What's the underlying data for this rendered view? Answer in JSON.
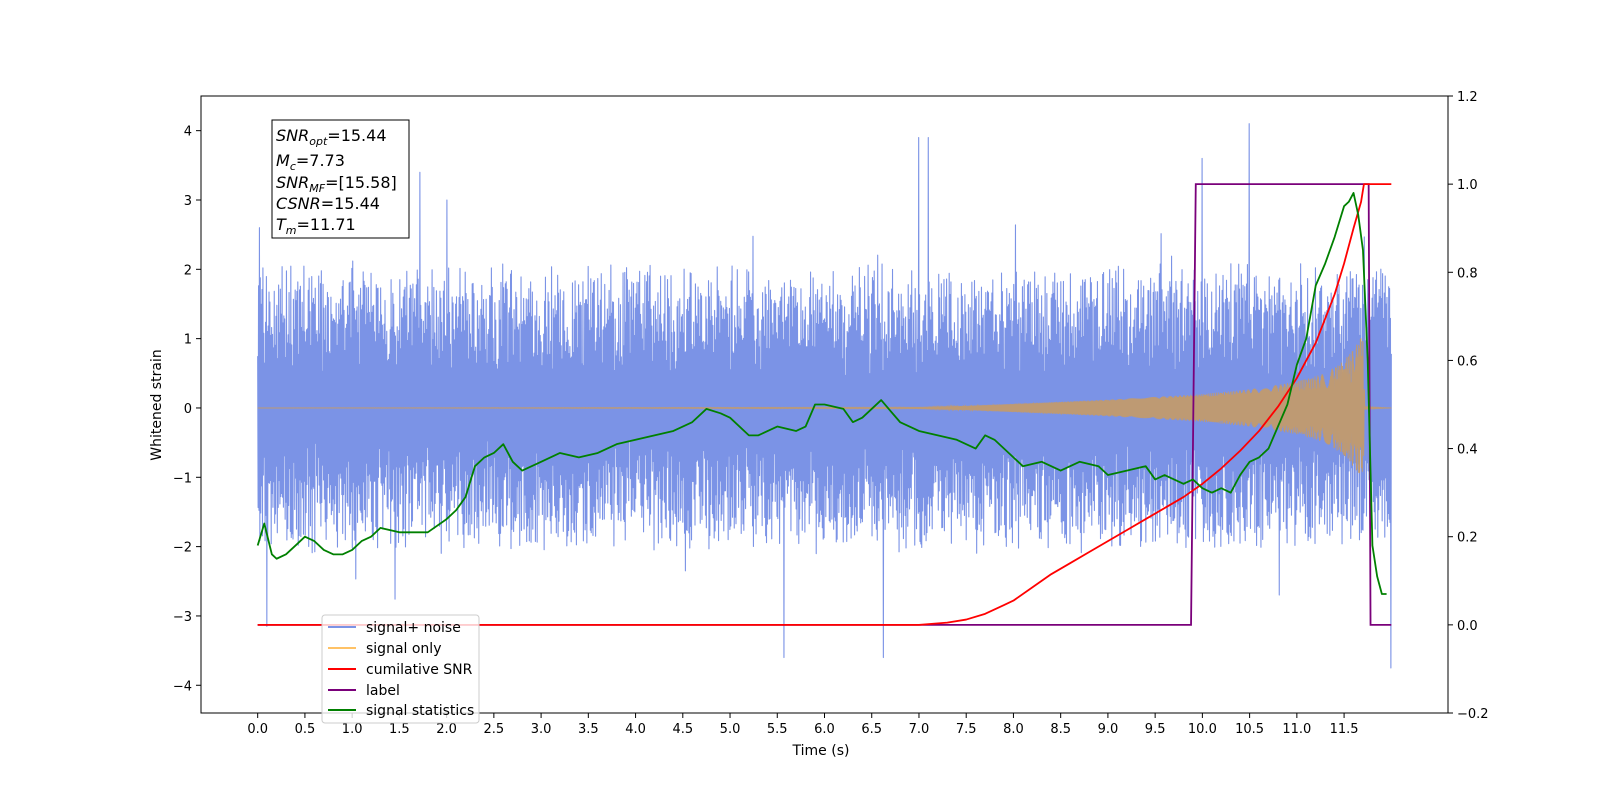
{
  "chart_data": {
    "type": "line",
    "title": "",
    "xlabel": "Time (s)",
    "ylabel": "Whitened strain",
    "xlim": [
      -0.6,
      12.6
    ],
    "ylim": [
      -4.4,
      4.5
    ],
    "ylim_right": [
      -0.2,
      1.2
    ],
    "grid": false,
    "x_ticks": [
      "0.0",
      "0.5",
      "1.0",
      "1.5",
      "2.0",
      "2.5",
      "3.0",
      "3.5",
      "4.0",
      "4.5",
      "5.0",
      "5.5",
      "6.0",
      "6.5",
      "7.0",
      "7.5",
      "8.0",
      "8.5",
      "9.0",
      "9.5",
      "10.0",
      "10.5",
      "11.0",
      "11.5"
    ],
    "y_ticks": [
      "4",
      "3",
      "2",
      "1",
      "0",
      "−1",
      "−2",
      "−3",
      "−4"
    ],
    "y_ticks_right": [
      "1.2",
      "1.0",
      "0.8",
      "0.6",
      "0.4",
      "0.2",
      "0.0",
      "−0.2"
    ],
    "colors": {
      "noise": "#7b93e6",
      "signal": "#c29a6d",
      "signal_legend": "#ffc266",
      "snr": "#ff0000",
      "label": "#7a007a",
      "stats": "#008000"
    },
    "annotation": {
      "snr_opt": {
        "base": "SNR",
        "sub": "opt",
        "val": "=15.44"
      },
      "mc": {
        "base": "M",
        "sub": "c",
        "val": "=7.73"
      },
      "snr_mf": {
        "base": "SNR",
        "sub": "MF",
        "val": "=[15.58]"
      },
      "csnr": {
        "base": "CSNR",
        "val": "=15.44"
      },
      "tm": {
        "base": "T",
        "sub": "m",
        "val": "=11.71"
      }
    },
    "legend": {
      "position": "lower-left",
      "entries": [
        "signal+ noise",
        "signal only",
        "cumilative SNR",
        "label",
        "signal statistics"
      ]
    },
    "series": [
      {
        "name": "signal+ noise",
        "axis": "left",
        "description_free": true,
        "x_range": [
          0.0,
          12.0
        ],
        "amplitude_band": [
          -2.3,
          2.3
        ],
        "peak_points": [
          [
            0.02,
            2.6
          ],
          [
            1.72,
            3.4
          ],
          [
            2.0,
            3.0
          ],
          [
            7.0,
            3.9
          ],
          [
            7.1,
            3.9
          ],
          [
            10.5,
            4.1
          ],
          [
            10.0,
            3.6
          ],
          [
            5.57,
            -3.6
          ],
          [
            6.62,
            -3.6
          ],
          [
            12.0,
            -3.75
          ],
          [
            0.1,
            -3.15
          ]
        ]
      },
      {
        "name": "signal only",
        "axis": "left",
        "envelope": {
          "x": [
            0.0,
            7.0,
            7.5,
            8.0,
            9.0,
            10.0,
            10.5,
            11.0,
            11.3,
            11.5,
            11.6,
            11.7,
            11.72,
            12.0
          ],
          "y": [
            0.0,
            0.01,
            0.03,
            0.06,
            0.12,
            0.2,
            0.27,
            0.38,
            0.5,
            0.68,
            0.85,
            1.05,
            0.02,
            0.0
          ]
        }
      },
      {
        "name": "cumilative SNR",
        "axis": "right",
        "x": [
          0.0,
          6.5,
          7.0,
          7.3,
          7.5,
          7.7,
          7.9,
          8.0,
          8.2,
          8.4,
          8.6,
          8.8,
          9.0,
          9.2,
          9.4,
          9.6,
          9.8,
          10.0,
          10.2,
          10.4,
          10.6,
          10.8,
          11.0,
          11.2,
          11.4,
          11.5,
          11.6,
          11.68,
          11.71,
          11.72,
          12.0
        ],
        "y": [
          0.0,
          0.0,
          0.0,
          0.005,
          0.012,
          0.025,
          0.045,
          0.055,
          0.085,
          0.115,
          0.14,
          0.165,
          0.19,
          0.215,
          0.24,
          0.265,
          0.29,
          0.32,
          0.355,
          0.395,
          0.44,
          0.495,
          0.56,
          0.64,
          0.75,
          0.82,
          0.9,
          0.96,
          1.0,
          1.0,
          1.0
        ]
      },
      {
        "name": "label",
        "axis": "right",
        "x": [
          0.0,
          9.88,
          9.93,
          11.76,
          11.78,
          12.0
        ],
        "y": [
          0.0,
          0.0,
          1.0,
          1.0,
          0.0,
          0.0
        ]
      },
      {
        "name": "signal statistics",
        "axis": "right",
        "x": [
          0.0,
          0.07,
          0.15,
          0.2,
          0.3,
          0.4,
          0.5,
          0.6,
          0.7,
          0.8,
          0.9,
          1.0,
          1.1,
          1.2,
          1.3,
          1.5,
          1.8,
          2.0,
          2.1,
          2.2,
          2.3,
          2.4,
          2.5,
          2.6,
          2.7,
          2.8,
          3.0,
          3.2,
          3.4,
          3.6,
          3.8,
          4.0,
          4.2,
          4.4,
          4.6,
          4.75,
          4.9,
          5.0,
          5.2,
          5.3,
          5.5,
          5.7,
          5.8,
          5.9,
          6.0,
          6.2,
          6.3,
          6.4,
          6.6,
          6.8,
          7.0,
          7.2,
          7.4,
          7.6,
          7.7,
          7.8,
          8.0,
          8.1,
          8.3,
          8.5,
          8.7,
          8.9,
          9.0,
          9.2,
          9.4,
          9.5,
          9.6,
          9.8,
          9.9,
          10.0,
          10.1,
          10.2,
          10.3,
          10.4,
          10.5,
          10.6,
          10.7,
          10.8,
          10.9,
          11.0,
          11.1,
          11.2,
          11.3,
          11.4,
          11.5,
          11.55,
          11.6,
          11.65,
          11.7,
          11.75,
          11.8,
          11.85,
          11.9,
          11.95
        ],
        "y": [
          0.18,
          0.23,
          0.16,
          0.15,
          0.16,
          0.18,
          0.2,
          0.19,
          0.17,
          0.16,
          0.16,
          0.17,
          0.19,
          0.2,
          0.22,
          0.21,
          0.21,
          0.24,
          0.26,
          0.29,
          0.36,
          0.38,
          0.39,
          0.41,
          0.37,
          0.35,
          0.37,
          0.39,
          0.38,
          0.39,
          0.41,
          0.42,
          0.43,
          0.44,
          0.46,
          0.49,
          0.48,
          0.47,
          0.43,
          0.43,
          0.45,
          0.44,
          0.45,
          0.5,
          0.5,
          0.49,
          0.46,
          0.47,
          0.51,
          0.46,
          0.44,
          0.43,
          0.42,
          0.4,
          0.43,
          0.42,
          0.38,
          0.36,
          0.37,
          0.35,
          0.37,
          0.36,
          0.34,
          0.35,
          0.36,
          0.33,
          0.34,
          0.32,
          0.33,
          0.31,
          0.3,
          0.31,
          0.3,
          0.34,
          0.37,
          0.38,
          0.4,
          0.45,
          0.5,
          0.59,
          0.65,
          0.77,
          0.82,
          0.88,
          0.95,
          0.96,
          0.98,
          0.93,
          0.85,
          0.6,
          0.18,
          0.11,
          0.07,
          0.07
        ]
      }
    ]
  }
}
